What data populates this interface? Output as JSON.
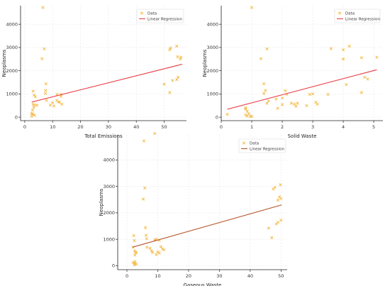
{
  "chart_data": [
    {
      "type": "scatter",
      "xlabel": "Total Emissions",
      "ylabel": "Neoplasms",
      "xticks": [
        0,
        10,
        20,
        30,
        40,
        50
      ],
      "yticks": [
        0,
        1000,
        2000,
        3000,
        4000
      ],
      "xlim": [
        -1.5,
        58
      ],
      "ylim": [
        -150,
        4800
      ],
      "grid": true,
      "legend_position": "top-right",
      "legend": [
        "Data",
        "Linear Regression"
      ],
      "colors": {
        "points": "#f3b73e",
        "regression": "#e8434a"
      },
      "points": [
        [
          6.5,
          4720
        ],
        [
          7.0,
          2940
        ],
        [
          6.2,
          2520
        ],
        [
          7.6,
          1440
        ],
        [
          7.5,
          1150
        ],
        [
          7.4,
          1020
        ],
        [
          7.8,
          720
        ],
        [
          9.2,
          520
        ],
        [
          3.0,
          1120
        ],
        [
          3.4,
          950
        ],
        [
          3.8,
          880
        ],
        [
          3.0,
          560
        ],
        [
          3.5,
          520
        ],
        [
          4.4,
          520
        ],
        [
          3.2,
          420
        ],
        [
          2.8,
          300
        ],
        [
          2.5,
          140
        ],
        [
          3.0,
          110
        ],
        [
          3.5,
          80
        ],
        [
          2.5,
          40
        ],
        [
          2.7,
          160
        ],
        [
          10.0,
          620
        ],
        [
          10.5,
          480
        ],
        [
          11.5,
          720
        ],
        [
          12.0,
          660
        ],
        [
          12.5,
          640
        ],
        [
          13.0,
          900
        ],
        [
          13.3,
          560
        ],
        [
          11.6,
          980
        ],
        [
          13.0,
          980
        ],
        [
          52.0,
          2900
        ],
        [
          52.3,
          2980
        ],
        [
          54.5,
          3060
        ],
        [
          54.8,
          2600
        ],
        [
          56.0,
          2580
        ],
        [
          55.8,
          2500
        ],
        [
          50.0,
          1420
        ],
        [
          52.0,
          1060
        ],
        [
          53.0,
          1580
        ],
        [
          54.5,
          1620
        ],
        [
          55.0,
          1720
        ]
      ],
      "regression": [
        [
          2.5,
          650
        ],
        [
          56.5,
          2280
        ]
      ]
    },
    {
      "type": "scatter",
      "xlabel": "Solid Waste",
      "ylabel": "Neoplasms",
      "xticks": [
        0,
        1,
        2,
        3,
        4,
        5
      ],
      "yticks": [
        0,
        1000,
        2000,
        3000,
        4000
      ],
      "xlim": [
        0,
        5.3
      ],
      "ylim": [
        -150,
        4800
      ],
      "grid": true,
      "legend_position": "top-right",
      "legend": [
        "Data",
        "Linear Regression"
      ],
      "colors": {
        "points": "#f3b73e",
        "regression": "#e8434a"
      },
      "points": [
        [
          1.0,
          4720
        ],
        [
          1.5,
          2940
        ],
        [
          1.3,
          2520
        ],
        [
          1.4,
          1440
        ],
        [
          1.45,
          1150
        ],
        [
          1.4,
          1020
        ],
        [
          0.8,
          400
        ],
        [
          0.85,
          260
        ],
        [
          0.8,
          100
        ],
        [
          0.9,
          150
        ],
        [
          0.85,
          50
        ],
        [
          0.95,
          40
        ],
        [
          1.0,
          30
        ],
        [
          0.2,
          120
        ],
        [
          0.8,
          350
        ],
        [
          1.5,
          600
        ],
        [
          1.55,
          700
        ],
        [
          1.8,
          780
        ],
        [
          2.0,
          820
        ],
        [
          2.1,
          1140
        ],
        [
          2.15,
          980
        ],
        [
          1.85,
          380
        ],
        [
          2.0,
          540
        ],
        [
          2.3,
          600
        ],
        [
          2.4,
          560
        ],
        [
          2.45,
          470
        ],
        [
          2.5,
          600
        ],
        [
          2.8,
          500
        ],
        [
          2.9,
          980
        ],
        [
          3.0,
          1000
        ],
        [
          3.1,
          640
        ],
        [
          3.15,
          560
        ],
        [
          3.5,
          980
        ],
        [
          3.6,
          2950
        ],
        [
          4.0,
          2900
        ],
        [
          4.2,
          3060
        ],
        [
          4.1,
          1400
        ],
        [
          4.0,
          2500
        ],
        [
          4.6,
          2560
        ],
        [
          4.6,
          1060
        ],
        [
          4.7,
          1720
        ],
        [
          4.8,
          1640
        ],
        [
          5.1,
          2580
        ]
      ],
      "regression": [
        [
          0.2,
          340
        ],
        [
          5.1,
          2040
        ]
      ]
    },
    {
      "type": "scatter",
      "xlabel": "Gaseous Waste",
      "ylabel": "Neoplasms",
      "xticks": [
        0,
        10,
        20,
        30,
        40,
        50
      ],
      "yticks": [
        0,
        1000,
        2000,
        3000,
        4000
      ],
      "xlim": [
        -3,
        52
      ],
      "ylim": [
        -150,
        4950
      ],
      "grid": true,
      "legend_position": "top-center",
      "legend": [
        "Data",
        "Linear Regression"
      ],
      "colors": {
        "points": "#f3b73e",
        "regression": "#b5572a"
      },
      "points": [
        [
          9.0,
          5000
        ],
        [
          5.5,
          4720
        ],
        [
          5.8,
          2940
        ],
        [
          5.3,
          2520
        ],
        [
          6.0,
          1440
        ],
        [
          6.2,
          1150
        ],
        [
          6.4,
          1020
        ],
        [
          2.2,
          1140
        ],
        [
          2.4,
          950
        ],
        [
          2.0,
          700
        ],
        [
          2.5,
          560
        ],
        [
          2.8,
          500
        ],
        [
          2.6,
          400
        ],
        [
          3.0,
          500
        ],
        [
          2.0,
          120
        ],
        [
          2.5,
          90
        ],
        [
          3.0,
          60
        ],
        [
          2.4,
          30
        ],
        [
          2.6,
          160
        ],
        [
          6.5,
          700
        ],
        [
          7.5,
          660
        ],
        [
          8.0,
          560
        ],
        [
          8.3,
          500
        ],
        [
          9.0,
          980
        ],
        [
          9.5,
          1000
        ],
        [
          10.5,
          960
        ],
        [
          9.5,
          420
        ],
        [
          10.0,
          520
        ],
        [
          10.5,
          480
        ],
        [
          11.0,
          720
        ],
        [
          11.5,
          640
        ],
        [
          12.0,
          600
        ],
        [
          46.0,
          1420
        ],
        [
          47.0,
          1060
        ],
        [
          48.5,
          1580
        ],
        [
          49.0,
          1640
        ],
        [
          50.0,
          1720
        ],
        [
          47.5,
          2900
        ],
        [
          48.0,
          2960
        ],
        [
          49.8,
          3060
        ],
        [
          49.5,
          2600
        ],
        [
          50.0,
          2540
        ],
        [
          49.0,
          2480
        ]
      ],
      "regression": [
        [
          1.8,
          700
        ],
        [
          50.2,
          2300
        ]
      ]
    }
  ]
}
